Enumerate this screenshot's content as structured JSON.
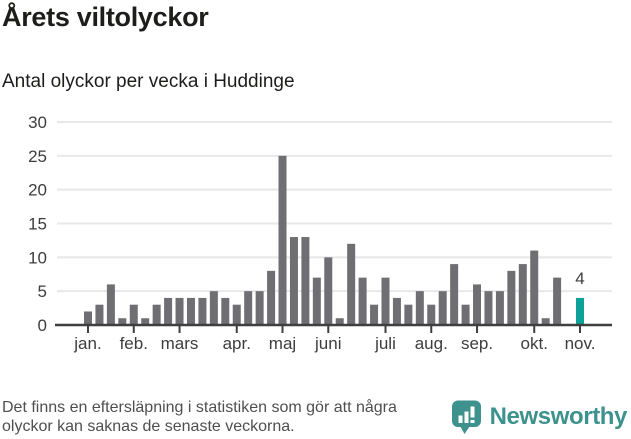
{
  "header": {
    "title": "Årets viltolyckor",
    "subtitle": "Antal olyckor per vecka i Huddinge"
  },
  "chart_data": {
    "type": "bar",
    "title": "Årets viltolyckor",
    "subtitle": "Antal olyckor per vecka i Huddinge",
    "x_unit": "vecka",
    "categories": [
      1,
      2,
      3,
      4,
      5,
      6,
      7,
      8,
      9,
      10,
      11,
      12,
      13,
      14,
      15,
      16,
      17,
      18,
      19,
      20,
      21,
      22,
      23,
      24,
      25,
      26,
      27,
      28,
      29,
      30,
      31,
      32,
      33,
      34,
      35,
      36,
      37,
      38,
      39,
      40,
      41,
      42,
      43,
      44
    ],
    "values": [
      2,
      3,
      6,
      1,
      3,
      1,
      3,
      4,
      4,
      4,
      4,
      5,
      4,
      3,
      5,
      5,
      8,
      25,
      13,
      13,
      7,
      10,
      1,
      12,
      7,
      3,
      7,
      4,
      3,
      5,
      3,
      5,
      9,
      3,
      6,
      5,
      5,
      8,
      9,
      11,
      1,
      7,
      0,
      4
    ],
    "highlight": {
      "index": 43,
      "label": "4",
      "color": "#0ca29a"
    },
    "bar_color": "#6e6e73",
    "grid": true,
    "grid_color": "#e8e8e8",
    "axis_color": "#3f3f3f",
    "axis_text_color": "#3d3d3d",
    "ylim": [
      0,
      30
    ],
    "yticks": [
      0,
      5,
      10,
      15,
      20,
      25,
      30
    ],
    "legend_position": "none",
    "months": [
      {
        "label": "jan.",
        "week": 1
      },
      {
        "label": "feb.",
        "week": 5
      },
      {
        "label": "mars",
        "week": 9
      },
      {
        "label": "apr.",
        "week": 14
      },
      {
        "label": "maj",
        "week": 18
      },
      {
        "label": "juni",
        "week": 22
      },
      {
        "label": "juli",
        "week": 27
      },
      {
        "label": "aug.",
        "week": 31
      },
      {
        "label": "sep.",
        "week": 35
      },
      {
        "label": "okt.",
        "week": 40
      },
      {
        "label": "nov.",
        "week": 44
      }
    ]
  },
  "footer": {
    "note": "Det finns en eftersläpning i statistiken som gör att några olyckor kan saknas de senaste veckorna.",
    "brand": "Newsworthy",
    "brand_color": "#3e928e"
  }
}
